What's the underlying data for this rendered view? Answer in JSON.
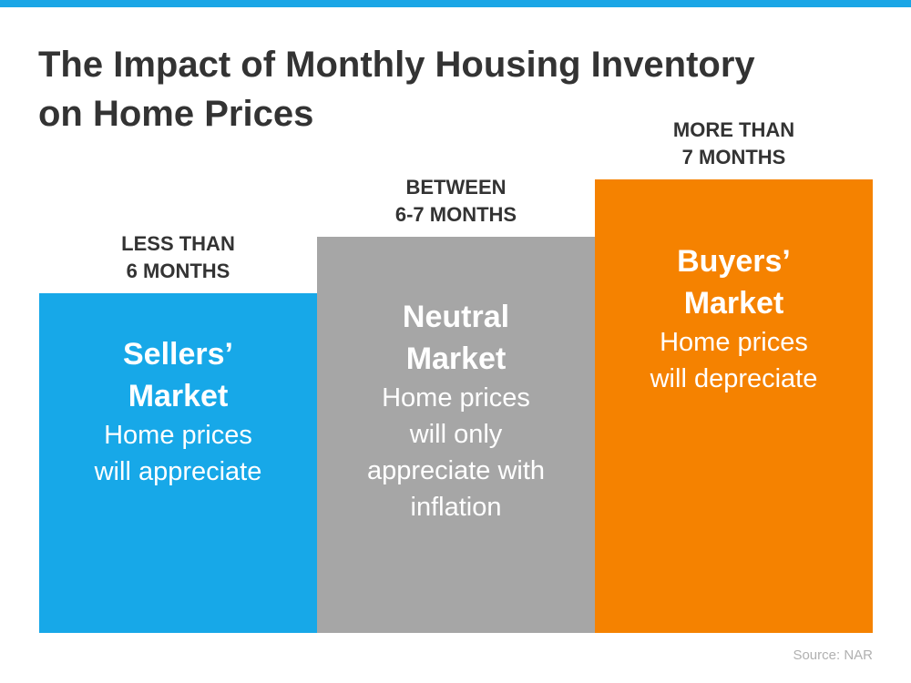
{
  "title_lines": [
    "The Impact of Monthly Housing Inventory",
    "on Home Prices"
  ],
  "panels": [
    {
      "header_lines": [
        "LESS THAN",
        "6 MONTHS"
      ],
      "title_lines": [
        "Sellers’",
        "Market"
      ],
      "text_lines": [
        "Home prices",
        "will appreciate"
      ]
    },
    {
      "header_lines": [
        "BETWEEN",
        "6-7 MONTHS"
      ],
      "title_lines": [
        "Neutral",
        "Market"
      ],
      "text_lines": [
        "Home prices",
        "will only",
        "appreciate with",
        "inflation"
      ]
    },
    {
      "header_lines": [
        "MORE THAN",
        "7 MONTHS"
      ],
      "title_lines": [
        "Buyers’",
        "Market"
      ],
      "text_lines": [
        "Home prices",
        "will depreciate"
      ]
    }
  ],
  "source": "Source: NAR"
}
